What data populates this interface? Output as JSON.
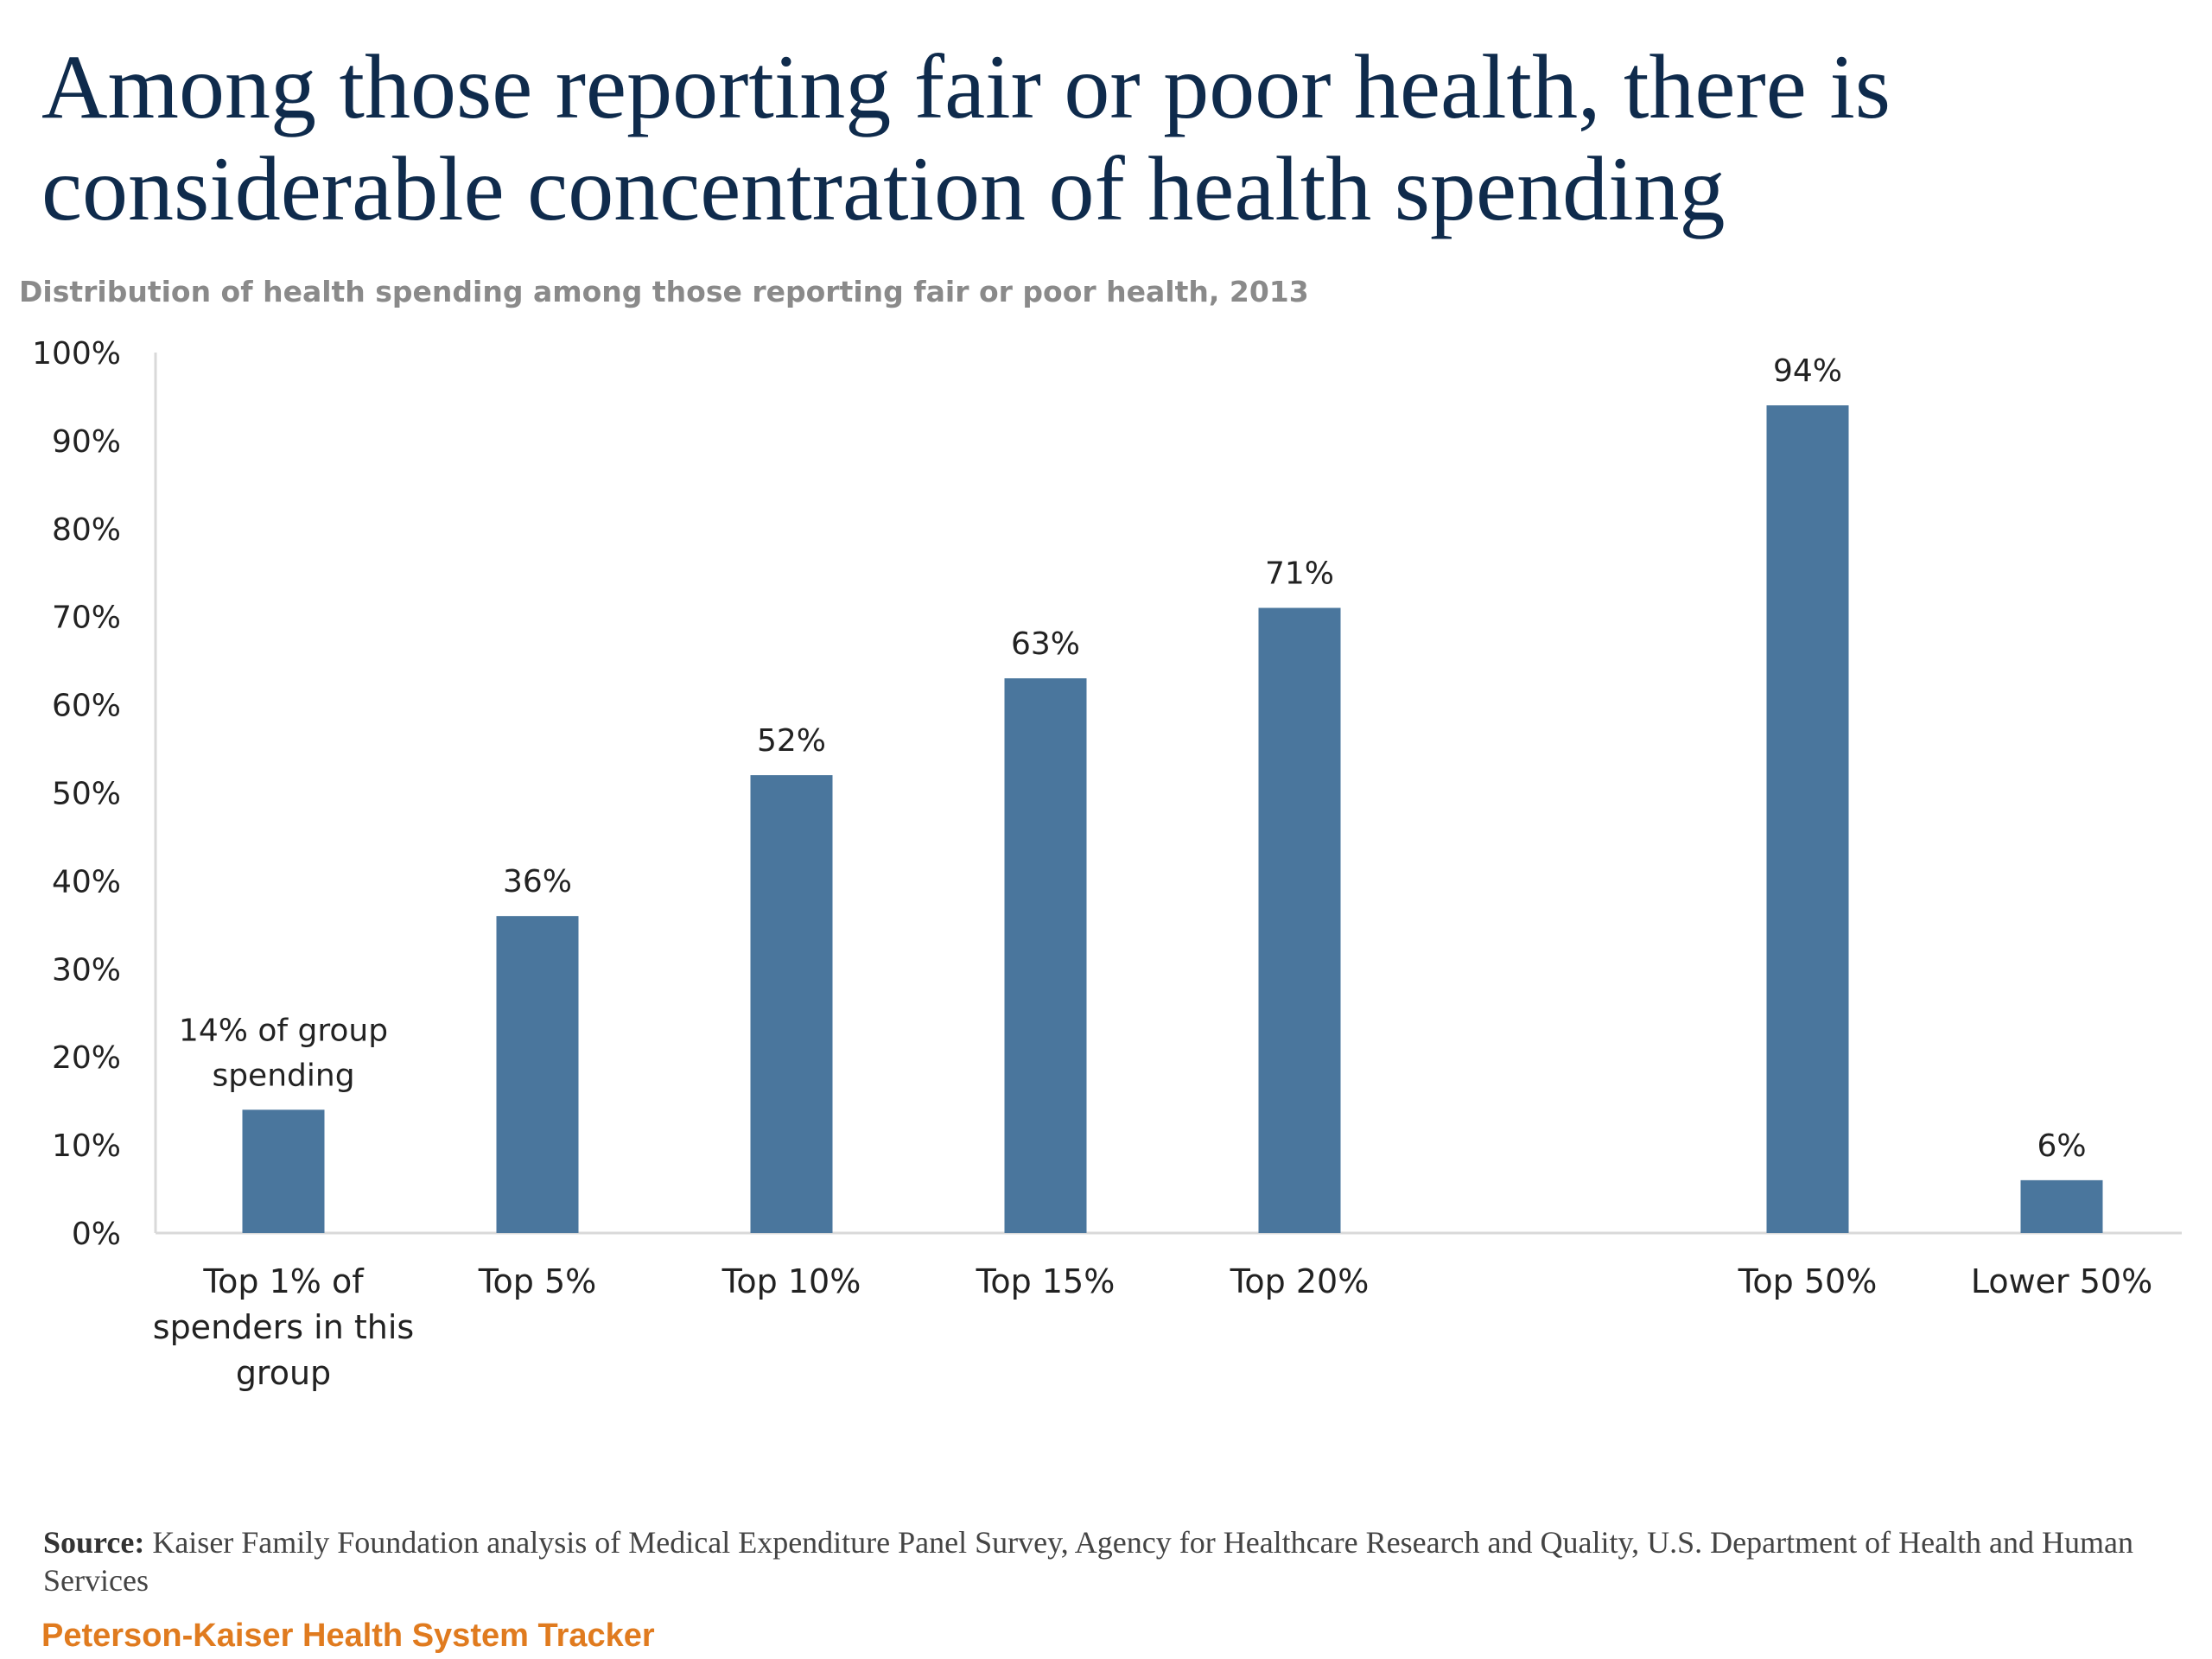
{
  "header": {
    "title": "Among those reporting fair or poor health, there is considerable concentration of health spending",
    "subtitle": "Distribution of health spending among those reporting fair or poor health, 2013"
  },
  "chart_data": {
    "type": "bar",
    "categories": [
      "Top 1% of spenders in this group",
      "Top 5%",
      "Top 10%",
      "Top 15%",
      "Top 20%",
      "Top 50%",
      "Lower 50%"
    ],
    "category_lines": [
      [
        "Top 1% of",
        "spenders in this",
        "group"
      ],
      [
        "Top 5%"
      ],
      [
        "Top 10%"
      ],
      [
        "Top 15%"
      ],
      [
        "Top 20%"
      ],
      [
        "Top 50%"
      ],
      [
        "Lower 50%"
      ]
    ],
    "values": [
      14,
      36,
      52,
      63,
      71,
      94,
      6
    ],
    "data_labels": [
      [
        "14% of group",
        "spending"
      ],
      [
        "36%"
      ],
      [
        "52%"
      ],
      [
        "63%"
      ],
      [
        "71%"
      ],
      [
        "94%"
      ],
      [
        "6%"
      ]
    ],
    "y_ticks": [
      "0%",
      "10%",
      "20%",
      "30%",
      "40%",
      "50%",
      "60%",
      "70%",
      "80%",
      "90%",
      "100%"
    ],
    "ylim": [
      0,
      100
    ],
    "grid": false,
    "legend": "none",
    "bar_color": "#4a769d"
  },
  "footer": {
    "source_label": "Source:",
    "source_text": "Kaiser Family Foundation analysis of Medical Expenditure Panel Survey, Agency for Healthcare Research and Quality, U.S. Department of Health and Human Services",
    "brand": "Peterson-Kaiser Health System Tracker"
  }
}
